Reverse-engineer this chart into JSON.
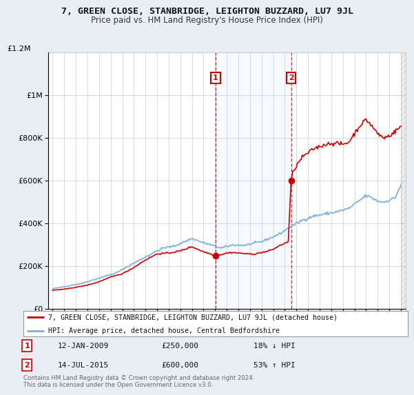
{
  "title": "7, GREEN CLOSE, STANBRIDGE, LEIGHTON BUZZARD, LU7 9JL",
  "subtitle": "Price paid vs. HM Land Registry's House Price Index (HPI)",
  "background_color": "#e8eef4",
  "plot_bg_color": "#ffffff",
  "red_line_color": "#cc0000",
  "blue_line_color": "#7aade0",
  "dashed_line_color": "#cc0000",
  "grid_color": "#cccccc",
  "legend_label_red": "7, GREEN CLOSE, STANBRIDGE, LEIGHTON BUZZARD, LU7 9JL (detached house)",
  "legend_label_blue": "HPI: Average price, detached house, Central Bedfordshire",
  "transaction1_date": "12-JAN-2009",
  "transaction1_price": "£250,000",
  "transaction1_pct": "18% ↓ HPI",
  "transaction1_year": 2009.04,
  "transaction1_value": 250000,
  "transaction2_date": "14-JUL-2015",
  "transaction2_price": "£600,000",
  "transaction2_pct": "53% ↑ HPI",
  "transaction2_year": 2015.54,
  "transaction2_value": 600000,
  "footer": "Contains HM Land Registry data © Crown copyright and database right 2024.\nThis data is licensed under the Open Government Licence v3.0.",
  "ylim": [
    0,
    1200000
  ],
  "xlim_start": 1994.6,
  "xlim_end": 2025.4
}
